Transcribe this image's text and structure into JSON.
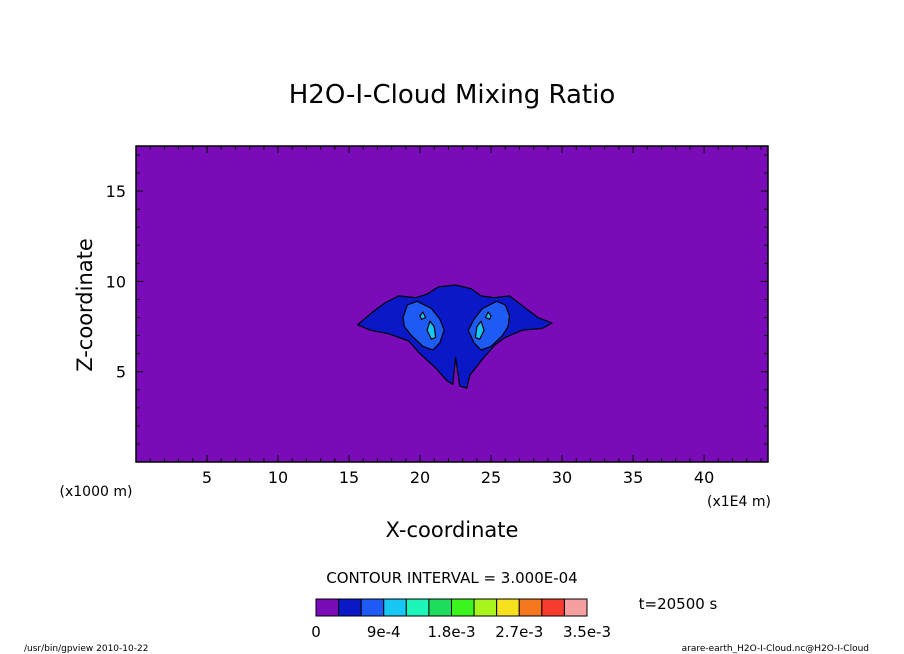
{
  "chart_data": {
    "type": "heatmap",
    "title": "H2O-I-Cloud Mixing Ratio",
    "xlabel": "X-coordinate",
    "ylabel": "Z-coordinate",
    "x_unit": "(x1E4 m)",
    "y_unit": "(x1000 m)",
    "xlim": [
      0,
      44.5
    ],
    "ylim": [
      0,
      17.5
    ],
    "x_ticks": [
      5,
      10,
      15,
      20,
      25,
      30,
      35,
      40
    ],
    "y_ticks": [
      5,
      10,
      15
    ],
    "contour_interval": "CONTOUR INTERVAL = 3.000E-04",
    "time_label": "t=20500 s",
    "colorbar": {
      "labels": [
        "0",
        "9e-4",
        "1.8e-3",
        "2.7e-3",
        "3.5e-3"
      ],
      "label_index": [
        0,
        3,
        6,
        9,
        12
      ],
      "colors": [
        "#7a0bb8",
        "#0a18c8",
        "#1e5bf5",
        "#19c7f5",
        "#1ef5b8",
        "#1edc5c",
        "#3cf51e",
        "#a8f51e",
        "#f5e11e",
        "#f5781e",
        "#f53c2d",
        "#f5a0a0"
      ]
    },
    "background_color": "#7a0bb8",
    "cloud_levels": [
      {
        "level": 1,
        "color": "#0a18c8",
        "outline": [
          [
            15.6,
            7.6
          ],
          [
            16.5,
            8.2
          ],
          [
            17.5,
            8.8
          ],
          [
            18.5,
            9.2
          ],
          [
            19.7,
            9.1
          ],
          [
            20.5,
            9.3
          ],
          [
            21.3,
            9.7
          ],
          [
            22.5,
            9.8
          ],
          [
            23.6,
            9.6
          ],
          [
            24.3,
            9.2
          ],
          [
            25.2,
            9.1
          ],
          [
            26.3,
            9.2
          ],
          [
            27.3,
            8.6
          ],
          [
            28.3,
            8.0
          ],
          [
            29.3,
            7.7
          ],
          [
            28.6,
            7.4
          ],
          [
            27.2,
            7.3
          ],
          [
            26.0,
            6.9
          ],
          [
            25.3,
            6.5
          ],
          [
            24.4,
            5.7
          ],
          [
            23.5,
            4.8
          ],
          [
            23.3,
            4.1
          ],
          [
            22.8,
            4.2
          ],
          [
            22.5,
            5.8
          ],
          [
            22.3,
            4.3
          ],
          [
            21.9,
            4.5
          ],
          [
            21.1,
            5.2
          ],
          [
            20.0,
            6.0
          ],
          [
            19.2,
            6.7
          ],
          [
            17.8,
            7.1
          ],
          [
            16.5,
            7.3
          ]
        ]
      },
      {
        "level": 2,
        "color": "#1e5bf5",
        "outline": [
          [
            18.8,
            8.0
          ],
          [
            19.1,
            8.7
          ],
          [
            19.8,
            8.9
          ],
          [
            20.8,
            8.5
          ],
          [
            21.4,
            7.9
          ],
          [
            21.7,
            7.3
          ],
          [
            21.4,
            6.6
          ],
          [
            20.9,
            6.2
          ],
          [
            20.2,
            6.4
          ],
          [
            19.4,
            7.0
          ],
          [
            18.9,
            7.5
          ]
        ]
      },
      {
        "level": 2,
        "color": "#1e5bf5",
        "outline": [
          [
            26.3,
            8.1
          ],
          [
            26.0,
            8.7
          ],
          [
            25.4,
            8.9
          ],
          [
            24.4,
            8.5
          ],
          [
            23.8,
            7.9
          ],
          [
            23.4,
            7.3
          ],
          [
            23.8,
            6.6
          ],
          [
            24.3,
            6.2
          ],
          [
            25.0,
            6.4
          ],
          [
            25.8,
            7.0
          ],
          [
            26.2,
            7.5
          ]
        ]
      },
      {
        "level": 3,
        "color": "#19c7f5",
        "outline": [
          [
            20.5,
            7.3
          ],
          [
            20.7,
            7.8
          ],
          [
            21.0,
            7.5
          ],
          [
            21.1,
            6.9
          ],
          [
            20.8,
            6.8
          ]
        ]
      },
      {
        "level": 3,
        "color": "#19c7f5",
        "outline": [
          [
            24.5,
            7.3
          ],
          [
            24.3,
            7.8
          ],
          [
            24.0,
            7.5
          ],
          [
            23.9,
            6.9
          ],
          [
            24.2,
            6.8
          ]
        ]
      },
      {
        "level": 3,
        "color": "#19c7f5",
        "outline": [
          [
            20.0,
            8.1
          ],
          [
            20.2,
            8.3
          ],
          [
            20.4,
            8.0
          ],
          [
            20.1,
            7.9
          ]
        ]
      },
      {
        "level": 3,
        "color": "#19c7f5",
        "outline": [
          [
            25.0,
            8.1
          ],
          [
            24.8,
            8.3
          ],
          [
            24.6,
            8.0
          ],
          [
            24.9,
            7.9
          ]
        ]
      }
    ]
  },
  "footer": {
    "left": "/usr/bin/gpview   2010-10-22",
    "right": "arare-earth_H2O-I-Cloud.nc@H2O-I-Cloud"
  }
}
